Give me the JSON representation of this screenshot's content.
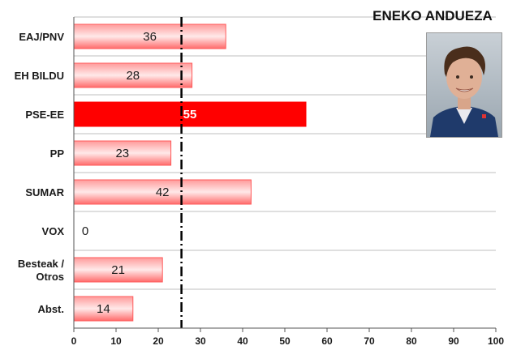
{
  "title": "ENEKO ANDUEZA",
  "photo_alt": "Portrait of Eneko Andueza",
  "chart_data": {
    "type": "bar",
    "orientation": "horizontal",
    "categories": [
      "EAJ/PNV",
      "EH BILDU",
      "PSE-EE",
      "PP",
      "SUMAR",
      "VOX",
      "Besteak / Otros",
      "Abst."
    ],
    "category_lines": [
      [
        "EAJ/PNV"
      ],
      [
        "EH BILDU"
      ],
      [
        "PSE-EE"
      ],
      [
        "PP"
      ],
      [
        "SUMAR"
      ],
      [
        "VOX"
      ],
      [
        "Besteak /",
        "Otros"
      ],
      [
        "Abst."
      ]
    ],
    "values": [
      36,
      28,
      55,
      23,
      42,
      0,
      21,
      14
    ],
    "value_labels": [
      "36",
      "28",
      "55",
      "23",
      "42",
      "0",
      "21",
      "14"
    ],
    "highlight_category": "PSE-EE",
    "reference_line": 25.5,
    "xlim": [
      0,
      100
    ],
    "xticks": [
      0,
      10,
      20,
      30,
      40,
      50,
      60,
      70,
      80,
      90,
      100
    ],
    "grid": "horizontal lines between categories",
    "colors": {
      "bar": "#ff6b6b",
      "bar_highlight": "#ff0000",
      "bar_highlight_text": "#ffffff",
      "grid": "#bfbfbf",
      "reference": "#000000"
    }
  }
}
